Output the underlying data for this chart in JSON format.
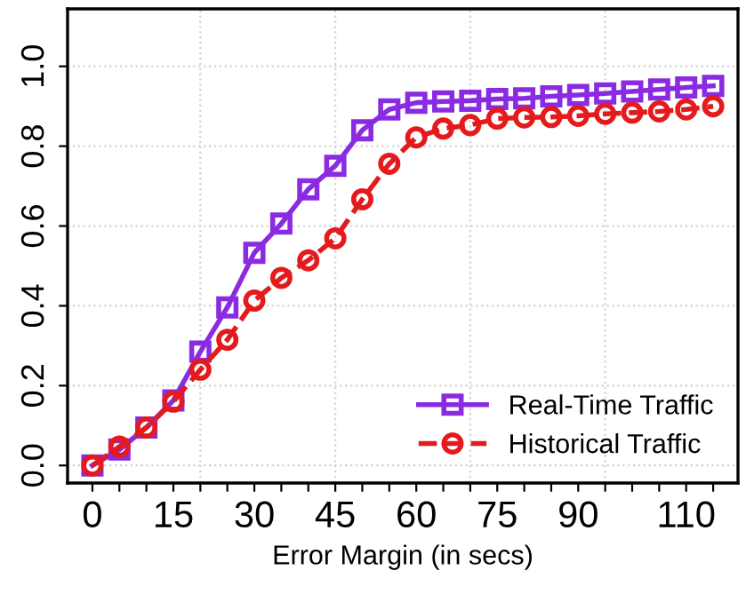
{
  "chart_data": {
    "type": "line",
    "xlabel": "Error Margin (in secs)",
    "x": [
      0,
      5,
      10,
      15,
      20,
      25,
      30,
      35,
      40,
      45,
      50,
      55,
      60,
      65,
      70,
      75,
      80,
      85,
      90,
      95,
      100,
      105,
      110,
      115
    ],
    "series": [
      {
        "name": "Real-Time Traffic",
        "color": "#8a2be2",
        "marker": "square",
        "line_style": "solid",
        "values": [
          0,
          0.04,
          0.095,
          0.163,
          0.285,
          0.396,
          0.533,
          0.606,
          0.692,
          0.751,
          0.84,
          0.892,
          0.909,
          0.912,
          0.914,
          0.918,
          0.92,
          0.925,
          0.928,
          0.932,
          0.937,
          0.942,
          0.947,
          0.951
        ]
      },
      {
        "name": "Historical Traffic",
        "color": "#e41a1c",
        "marker": "circle",
        "line_style": "dashed",
        "values": [
          0,
          0.047,
          0.095,
          0.16,
          0.24,
          0.315,
          0.413,
          0.47,
          0.514,
          0.569,
          0.667,
          0.756,
          0.822,
          0.844,
          0.853,
          0.869,
          0.872,
          0.873,
          0.876,
          0.881,
          0.884,
          0.887,
          0.892,
          0.9
        ]
      }
    ],
    "xlim": [
      -4.6,
      119.6
    ],
    "ylim": [
      -0.044,
      1.144
    ],
    "xticks": [
      0,
      {
        "value": 5,
        "label": null
      },
      {
        "value": 10,
        "label": null
      },
      15,
      {
        "value": 20,
        "label": null
      },
      {
        "value": 25,
        "label": null
      },
      30,
      {
        "value": 35,
        "label": null
      },
      {
        "value": 40,
        "label": null
      },
      45,
      {
        "value": 50,
        "label": null
      },
      {
        "value": 55,
        "label": null
      },
      60,
      {
        "value": 65,
        "label": null
      },
      {
        "value": 70,
        "label": null
      },
      75,
      {
        "value": 80,
        "label": null
      },
      {
        "value": 85,
        "label": null
      },
      90,
      {
        "value": 95,
        "label": null
      },
      {
        "value": 100,
        "label": null
      },
      {
        "value": 105,
        "label": null
      },
      110,
      {
        "value": 115,
        "label": null
      }
    ],
    "yticks": [
      {
        "value": 0,
        "label": "0.0"
      },
      0.2,
      0.4,
      0.6,
      0.8,
      {
        "value": 1,
        "label": "1.0"
      }
    ],
    "grid": "y",
    "ref_lines": [
      {
        "axis": "x",
        "value": 20,
        "color": "#d3d3d3",
        "line_style": "dotted"
      },
      {
        "axis": "x",
        "value": 45,
        "color": "#d3d3d3",
        "line_style": "dotted"
      },
      {
        "axis": "x",
        "value": 70,
        "color": "#d3d3d3",
        "line_style": "dotted"
      },
      {
        "axis": "x",
        "value": 95,
        "color": "#d3d3d3",
        "line_style": "dotted"
      }
    ],
    "legend": "bottom right"
  }
}
